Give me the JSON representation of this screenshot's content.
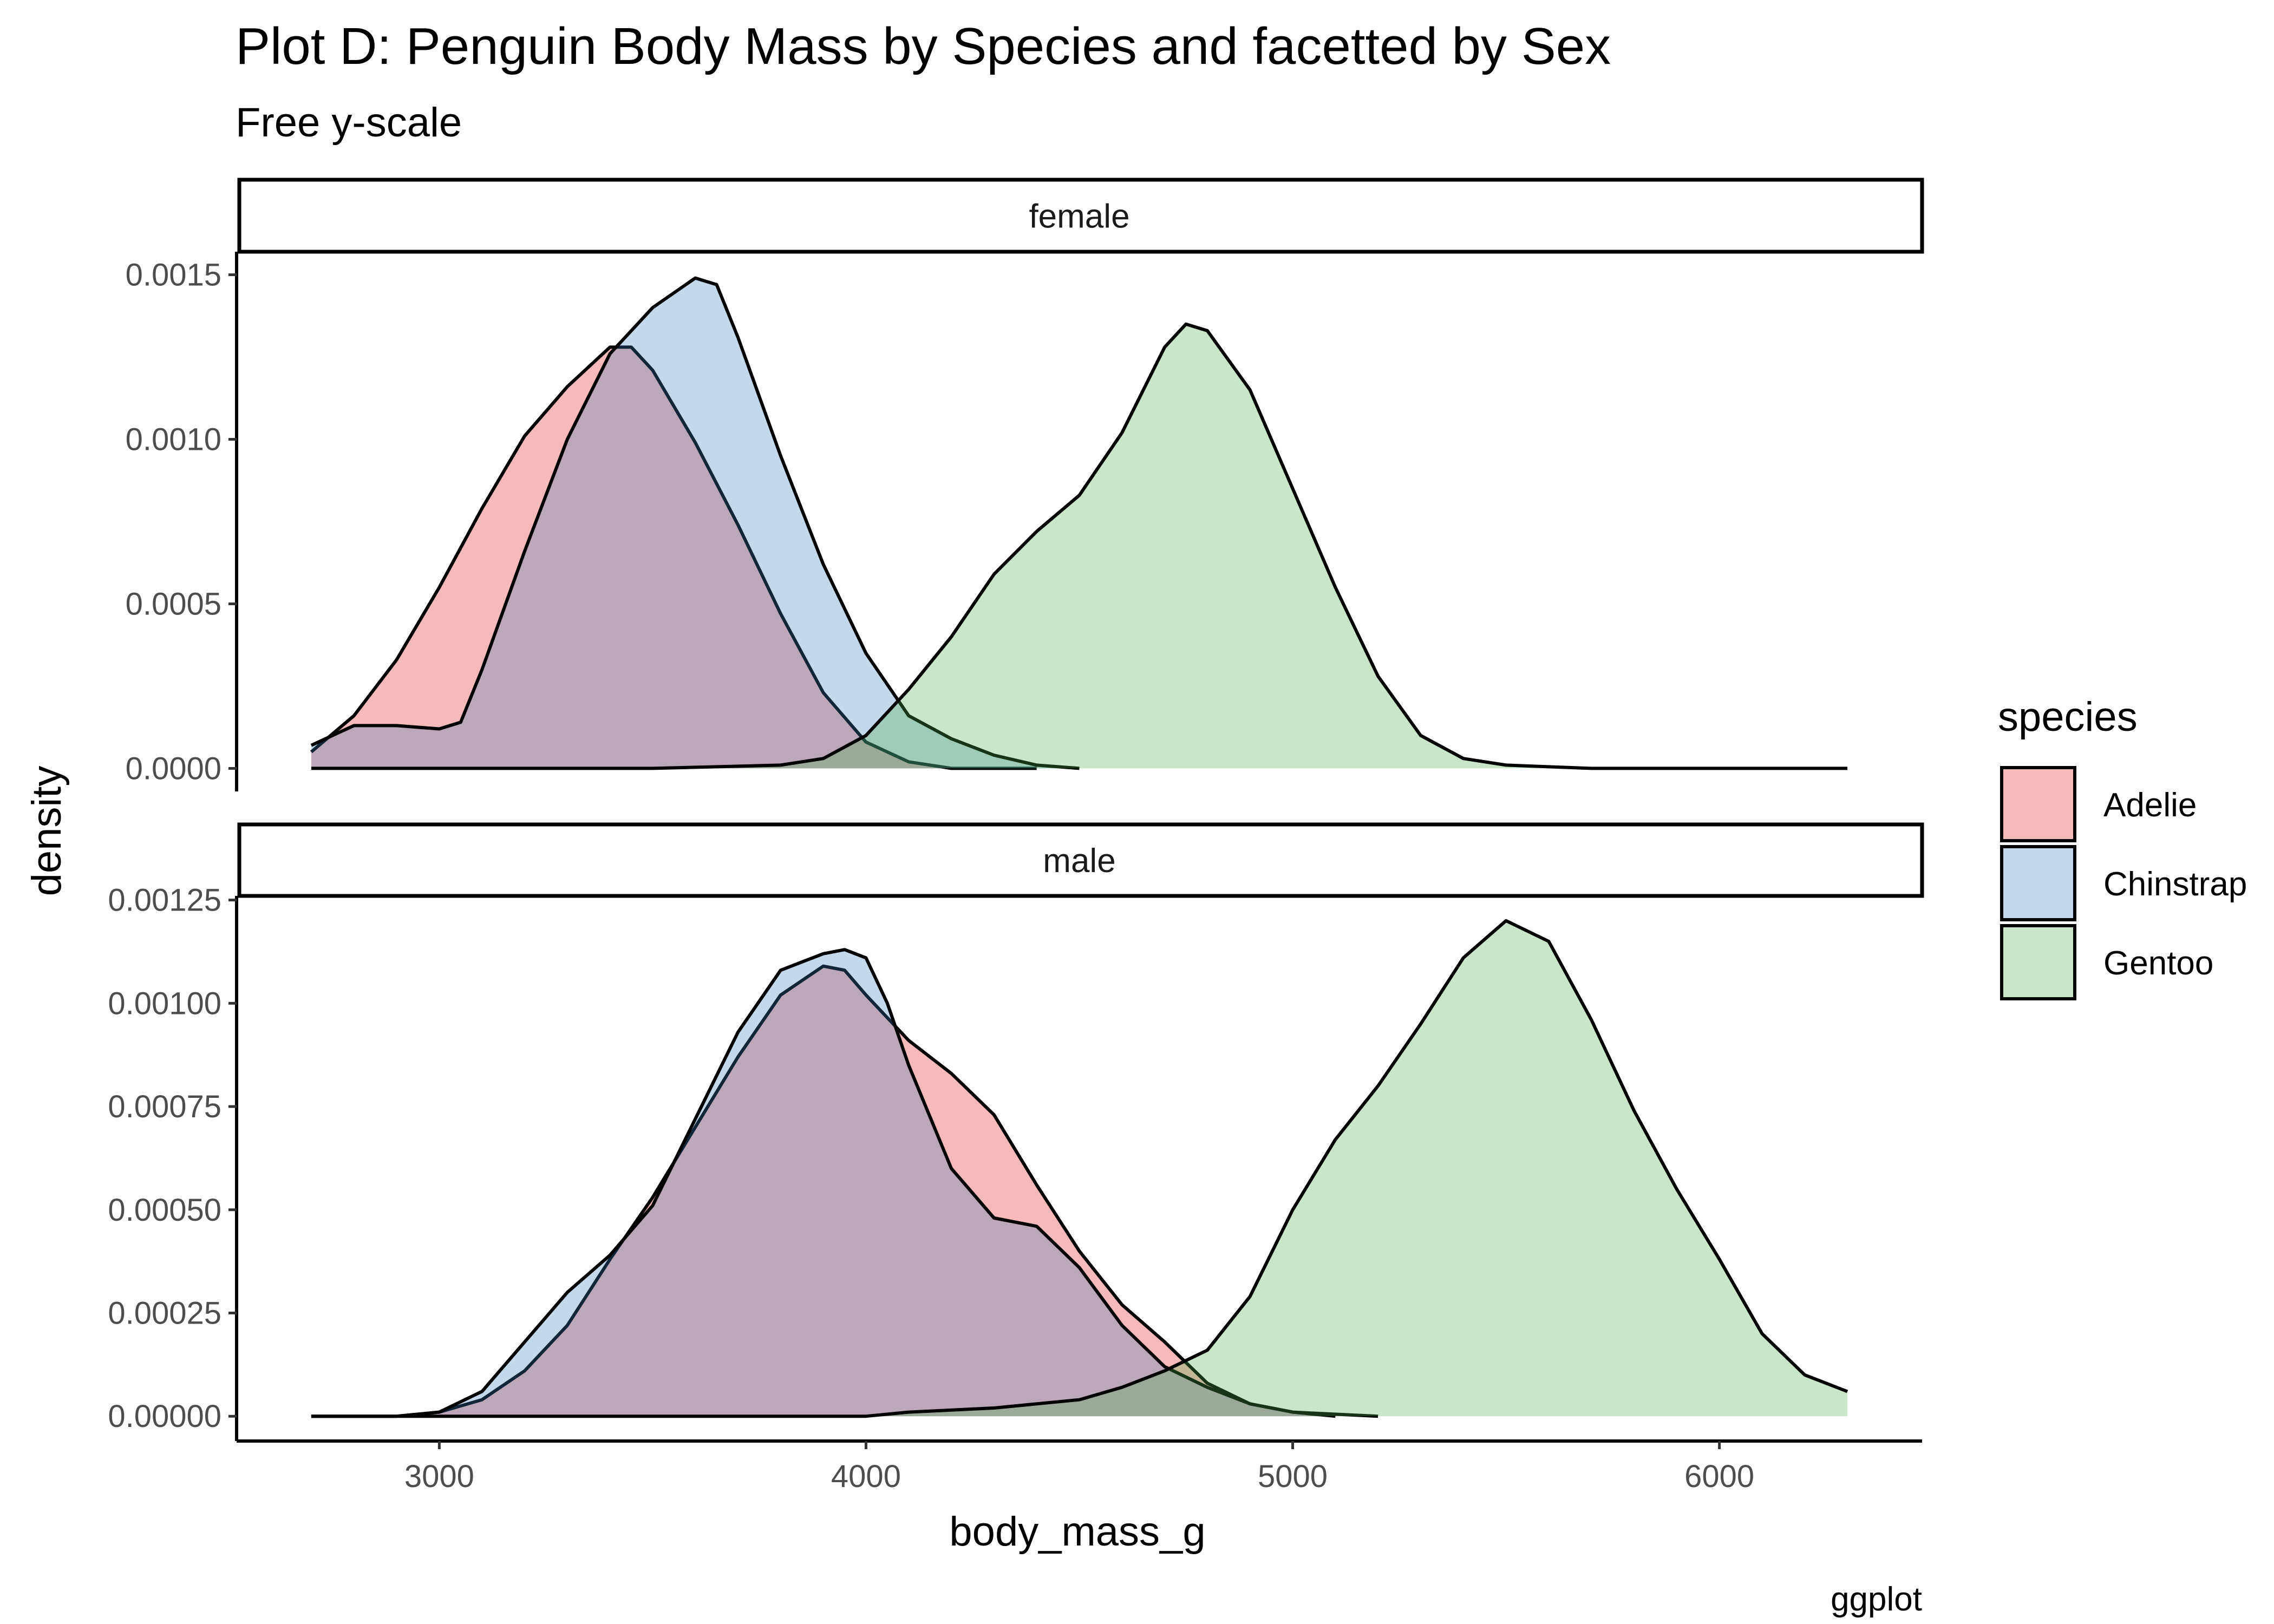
{
  "chart_data": {
    "type": "area",
    "subtype": "density",
    "title": "Plot D: Penguin Body Mass by Species and facetted by Sex",
    "subtitle": "Free y-scale",
    "caption": "ggplot",
    "xlabel": "body_mass_g",
    "ylabel": "density",
    "xlim": [
      2525,
      6475
    ],
    "x_ticks": [
      3000,
      4000,
      5000,
      6000
    ],
    "x_tick_labels": [
      "3000",
      "4000",
      "5000",
      "6000"
    ],
    "grid": false,
    "legend": {
      "title": "species",
      "position": "right",
      "entries": [
        "Adelie",
        "Chinstrap",
        "Gentoo"
      ]
    },
    "colors": {
      "Adelie": "#E41A1C",
      "Chinstrap": "#377EB8",
      "Gentoo": "#4DAF4A",
      "outline": "#000000",
      "fill_alpha": 0.3
    },
    "facets": [
      {
        "label": "female",
        "ylim": [
          -7e-05,
          0.00157
        ],
        "y_ticks": [
          0,
          0.0005,
          0.001,
          0.0015
        ],
        "y_tick_labels": [
          "0.0000",
          "0.0005",
          "0.0010",
          "0.0015"
        ],
        "series": [
          {
            "name": "Adelie",
            "points": [
              [
                2700,
                5e-05
              ],
              [
                2800,
                0.00016
              ],
              [
                2900,
                0.00033
              ],
              [
                3000,
                0.00055
              ],
              [
                3100,
                0.00079
              ],
              [
                3200,
                0.00101
              ],
              [
                3300,
                0.00116
              ],
              [
                3400,
                0.00128
              ],
              [
                3450,
                0.00128
              ],
              [
                3500,
                0.00121
              ],
              [
                3600,
                0.00099
              ],
              [
                3700,
                0.00074
              ],
              [
                3800,
                0.00047
              ],
              [
                3900,
                0.00023
              ],
              [
                4000,
                8e-05
              ],
              [
                4100,
                2e-05
              ],
              [
                4200,
                0
              ],
              [
                4400,
                0
              ]
            ]
          },
          {
            "name": "Chinstrap",
            "points": [
              [
                2700,
                7e-05
              ],
              [
                2800,
                0.00013
              ],
              [
                2900,
                0.00013
              ],
              [
                3000,
                0.00012
              ],
              [
                3050,
                0.00014
              ],
              [
                3100,
                0.0003
              ],
              [
                3200,
                0.00066
              ],
              [
                3300,
                0.001
              ],
              [
                3400,
                0.00126
              ],
              [
                3500,
                0.0014
              ],
              [
                3600,
                0.00149
              ],
              [
                3650,
                0.00147
              ],
              [
                3700,
                0.00131
              ],
              [
                3800,
                0.00095
              ],
              [
                3900,
                0.00062
              ],
              [
                4000,
                0.00035
              ],
              [
                4100,
                0.00016
              ],
              [
                4200,
                9e-05
              ],
              [
                4300,
                4e-05
              ],
              [
                4400,
                1e-05
              ],
              [
                4500,
                0
              ]
            ]
          },
          {
            "name": "Gentoo",
            "points": [
              [
                2700,
                0
              ],
              [
                3500,
                0
              ],
              [
                3800,
                1e-05
              ],
              [
                3900,
                3e-05
              ],
              [
                4000,
                0.0001
              ],
              [
                4100,
                0.00024
              ],
              [
                4200,
                0.0004
              ],
              [
                4300,
                0.00059
              ],
              [
                4400,
                0.00072
              ],
              [
                4500,
                0.00083
              ],
              [
                4600,
                0.00102
              ],
              [
                4700,
                0.00128
              ],
              [
                4750,
                0.00135
              ],
              [
                4800,
                0.00133
              ],
              [
                4900,
                0.00115
              ],
              [
                5000,
                0.00085
              ],
              [
                5100,
                0.00055
              ],
              [
                5200,
                0.00028
              ],
              [
                5300,
                0.0001
              ],
              [
                5400,
                3e-05
              ],
              [
                5500,
                1e-05
              ],
              [
                5700,
                0
              ],
              [
                6300,
                0
              ]
            ]
          }
        ]
      },
      {
        "label": "male",
        "ylim": [
          -6e-05,
          0.00126
        ],
        "y_ticks": [
          0,
          0.00025,
          0.0005,
          0.00075,
          0.001,
          0.00125
        ],
        "y_tick_labels": [
          "0.00000",
          "0.00025",
          "0.00050",
          "0.00075",
          "0.00100",
          "0.00125"
        ],
        "series": [
          {
            "name": "Adelie",
            "points": [
              [
                2700,
                0
              ],
              [
                2900,
                0
              ],
              [
                3000,
                1e-05
              ],
              [
                3100,
                4e-05
              ],
              [
                3200,
                0.00011
              ],
              [
                3300,
                0.00022
              ],
              [
                3400,
                0.00038
              ],
              [
                3500,
                0.00053
              ],
              [
                3600,
                0.0007
              ],
              [
                3700,
                0.00087
              ],
              [
                3800,
                0.00102
              ],
              [
                3900,
                0.00109
              ],
              [
                3950,
                0.00108
              ],
              [
                4000,
                0.00102
              ],
              [
                4100,
                0.00091
              ],
              [
                4200,
                0.00083
              ],
              [
                4300,
                0.00073
              ],
              [
                4400,
                0.00056
              ],
              [
                4500,
                0.0004
              ],
              [
                4600,
                0.00027
              ],
              [
                4700,
                0.00018
              ],
              [
                4800,
                8e-05
              ],
              [
                4900,
                3e-05
              ],
              [
                5000,
                1e-05
              ],
              [
                5200,
                0
              ]
            ]
          },
          {
            "name": "Chinstrap",
            "points": [
              [
                2700,
                0
              ],
              [
                2900,
                0
              ],
              [
                3000,
                1e-05
              ],
              [
                3100,
                6e-05
              ],
              [
                3200,
                0.00018
              ],
              [
                3300,
                0.0003
              ],
              [
                3400,
                0.00039
              ],
              [
                3500,
                0.00051
              ],
              [
                3600,
                0.00072
              ],
              [
                3700,
                0.00093
              ],
              [
                3800,
                0.00108
              ],
              [
                3900,
                0.00112
              ],
              [
                3950,
                0.00113
              ],
              [
                4000,
                0.00111
              ],
              [
                4050,
                0.001
              ],
              [
                4100,
                0.00085
              ],
              [
                4200,
                0.0006
              ],
              [
                4300,
                0.00048
              ],
              [
                4400,
                0.00046
              ],
              [
                4500,
                0.00036
              ],
              [
                4600,
                0.00022
              ],
              [
                4700,
                0.00012
              ],
              [
                4800,
                7e-05
              ],
              [
                4900,
                3e-05
              ],
              [
                5000,
                1e-05
              ],
              [
                5100,
                0
              ]
            ]
          },
          {
            "name": "Gentoo",
            "points": [
              [
                2700,
                0
              ],
              [
                4000,
                0
              ],
              [
                4100,
                1e-05
              ],
              [
                4300,
                2e-05
              ],
              [
                4500,
                4e-05
              ],
              [
                4600,
                7e-05
              ],
              [
                4700,
                0.00011
              ],
              [
                4800,
                0.00016
              ],
              [
                4900,
                0.00029
              ],
              [
                5000,
                0.0005
              ],
              [
                5100,
                0.00067
              ],
              [
                5200,
                0.0008
              ],
              [
                5300,
                0.00095
              ],
              [
                5400,
                0.00111
              ],
              [
                5500,
                0.0012
              ],
              [
                5600,
                0.00115
              ],
              [
                5700,
                0.00096
              ],
              [
                5800,
                0.00074
              ],
              [
                5900,
                0.00055
              ],
              [
                6000,
                0.00038
              ],
              [
                6100,
                0.0002
              ],
              [
                6200,
                0.0001
              ],
              [
                6300,
                6e-05
              ]
            ]
          }
        ]
      }
    ]
  }
}
